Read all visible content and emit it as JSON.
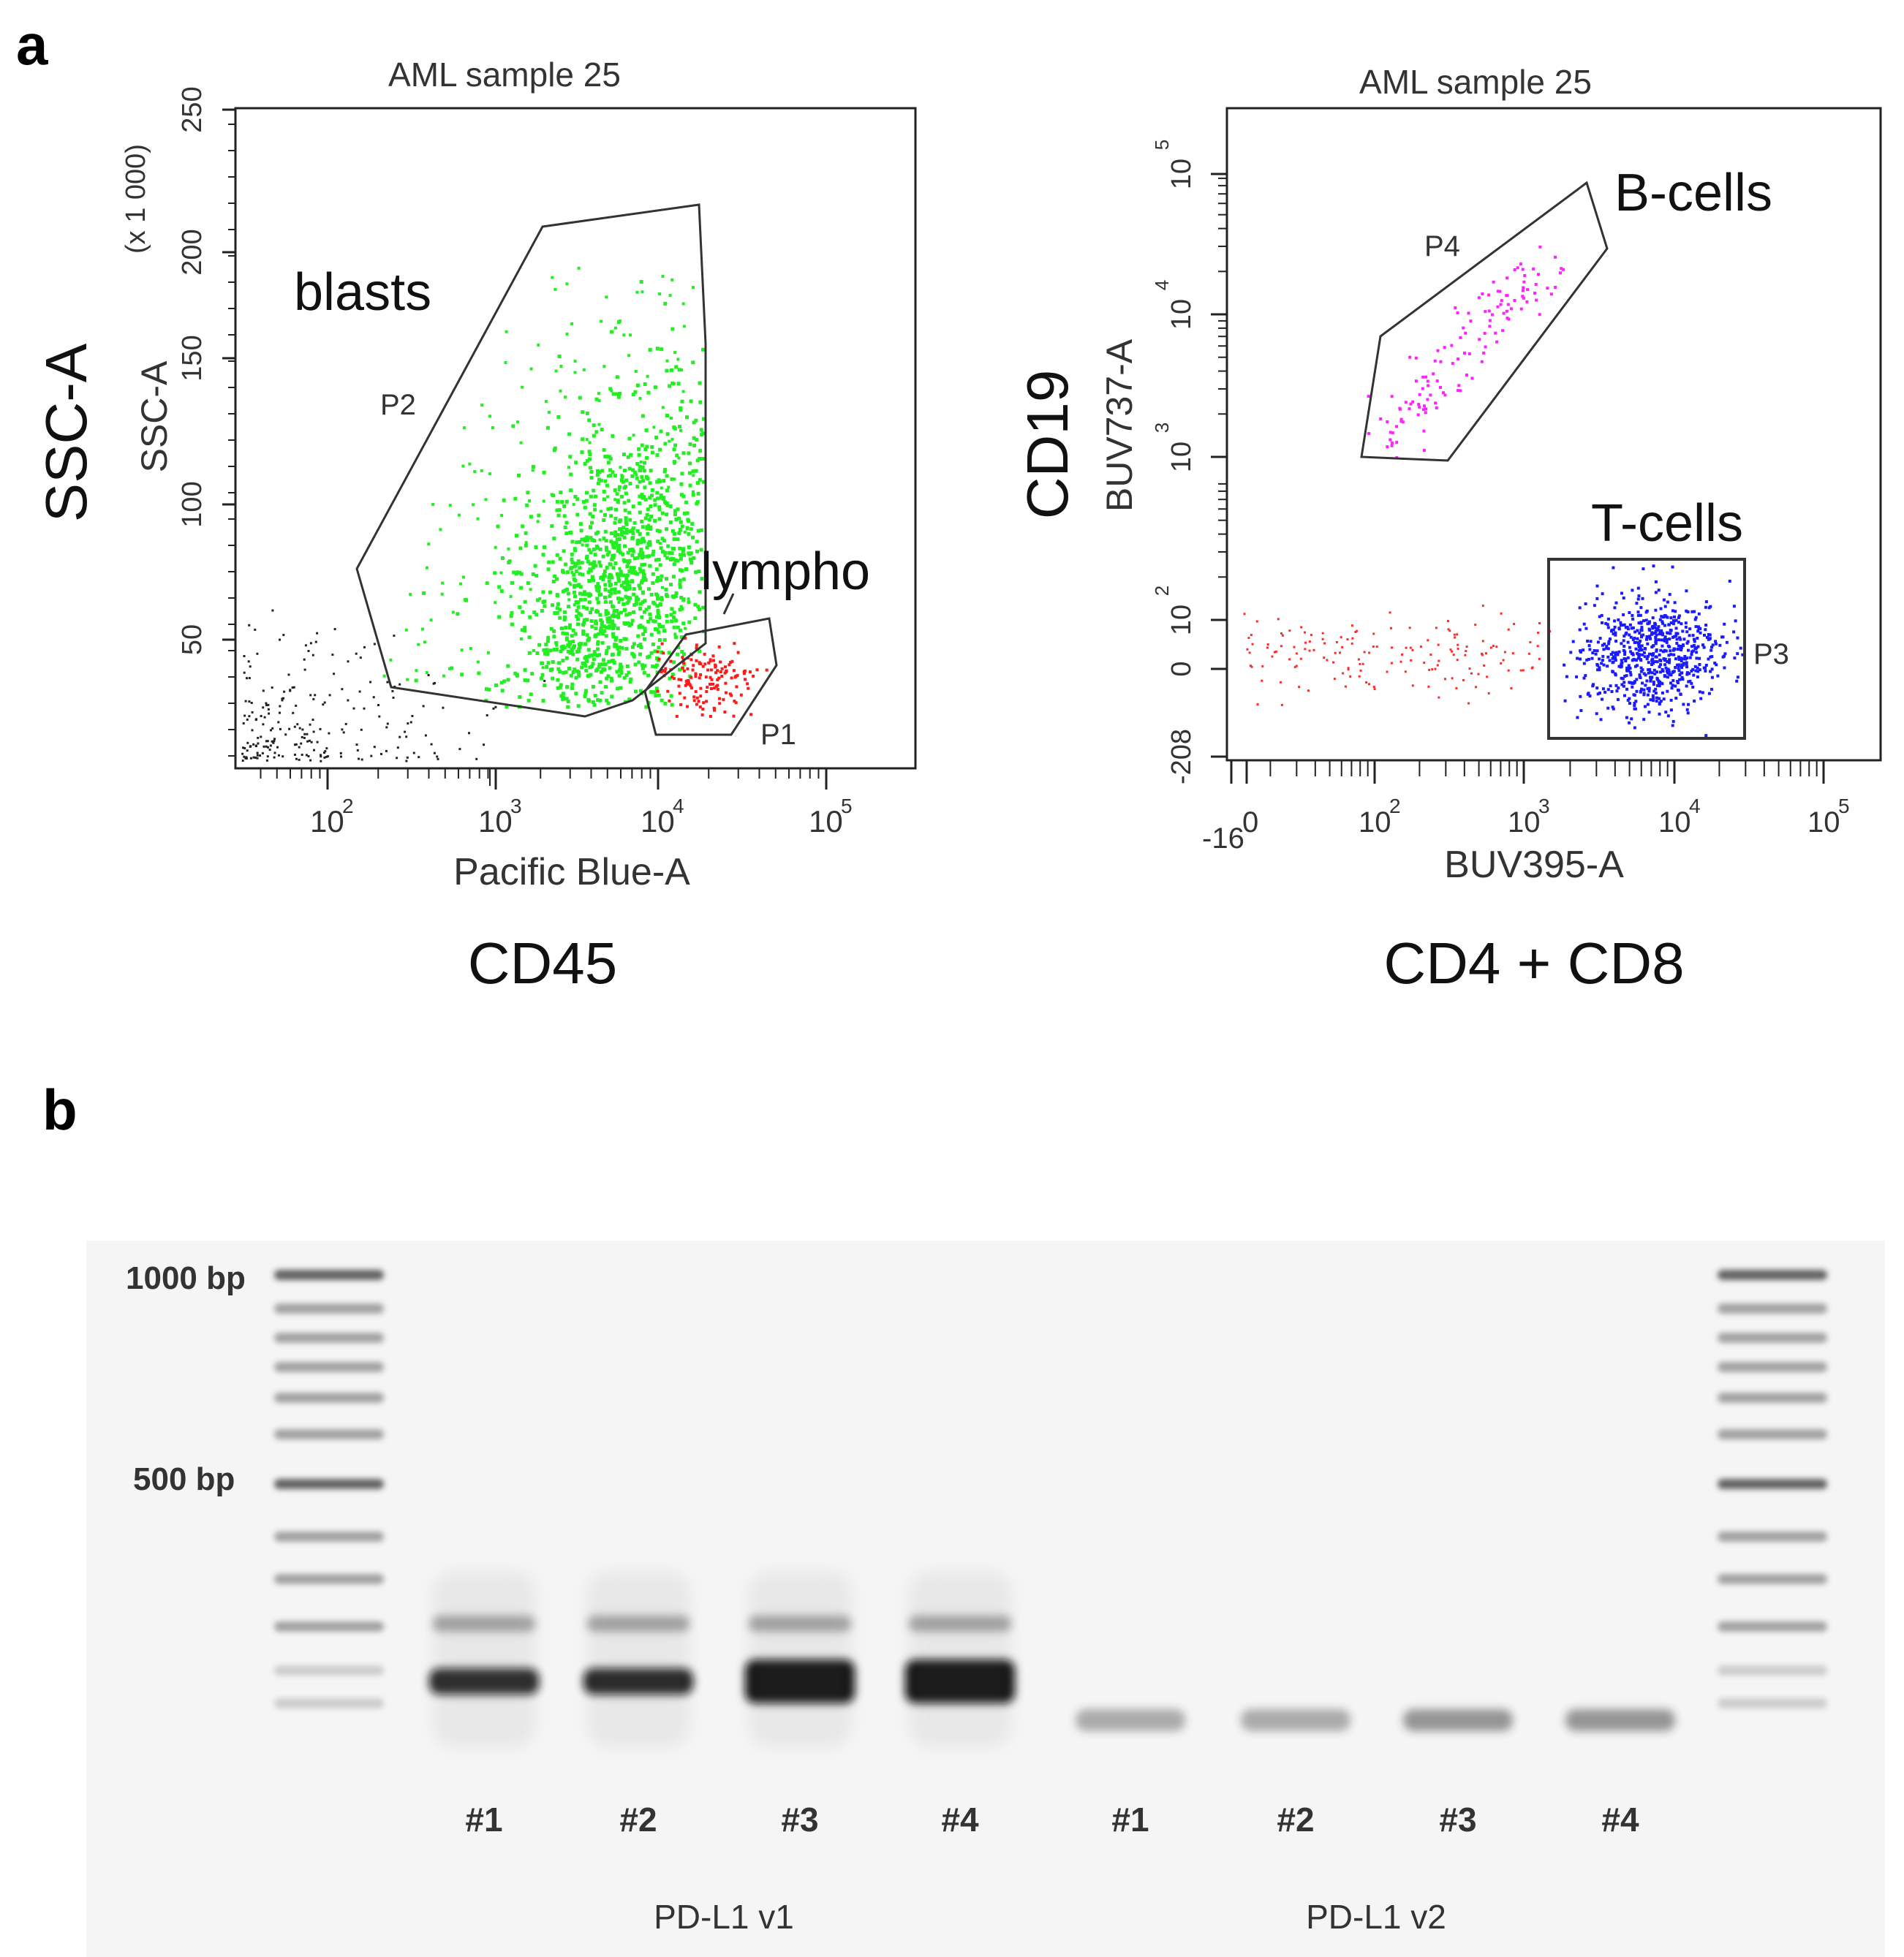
{
  "panel_a": {
    "label": "a",
    "left_plot": {
      "title": "AML sample 25",
      "y_outer_label": "SSC-A",
      "y_inner_label": "SSC-A",
      "y_scale_label": "(x 1 000)",
      "y_ticks": [
        "250",
        "200",
        "150",
        "100",
        "50"
      ],
      "x_ticks": [
        {
          "base": "10",
          "exp": "2"
        },
        {
          "base": "10",
          "exp": "3"
        },
        {
          "base": "10",
          "exp": "4"
        },
        {
          "base": "10",
          "exp": "5"
        }
      ],
      "x_inner_label": "Pacific Blue-A",
      "x_outer_label": "CD45",
      "gates": {
        "p2": "P2",
        "p1": "P1"
      },
      "annotations": {
        "blasts": "blasts",
        "lympho": "lympho"
      },
      "colors": {
        "blasts": "#22ee22",
        "lympho": "#ff1a1a",
        "other": "#222222"
      }
    },
    "right_plot": {
      "title": "AML sample 25",
      "y_outer_label": "CD19",
      "y_inner_label": "BUV737-A",
      "y_ticks": [
        {
          "base": "10",
          "exp": "5"
        },
        {
          "base": "10",
          "exp": "4"
        },
        {
          "base": "10",
          "exp": "3"
        },
        {
          "base": "10",
          "exp": "2"
        },
        {
          "base": "0",
          "exp": ""
        },
        {
          "base": "-208",
          "exp": ""
        }
      ],
      "x_ticks": [
        {
          "base": "-16",
          "exp": ""
        },
        {
          "base": "0",
          "exp": ""
        },
        {
          "base": "10",
          "exp": "2"
        },
        {
          "base": "10",
          "exp": "3"
        },
        {
          "base": "10",
          "exp": "4"
        },
        {
          "base": "10",
          "exp": "5"
        }
      ],
      "x_inner_label": "BUV395-A",
      "x_outer_label": "CD4 + CD8",
      "gates": {
        "p4": "P4",
        "p3": "P3"
      },
      "annotations": {
        "bcells": "B-cells",
        "tcells": "T-cells"
      },
      "colors": {
        "bcells": "#ff22ff",
        "tcells": "#1a1aff",
        "other": "#ff2a2a"
      }
    }
  },
  "panel_b": {
    "label": "b",
    "ladder_labels": [
      "1000 bp",
      "500 bp"
    ],
    "lane_labels_v1": [
      "#1",
      "#2",
      "#3",
      "#4"
    ],
    "lane_labels_v2": [
      "#1",
      "#2",
      "#3",
      "#4"
    ],
    "group_labels": [
      "PD-L1 v1",
      "PD-L1 v2"
    ],
    "band_intensity_v1": [
      0.9,
      0.92,
      1.0,
      1.0
    ],
    "band_intensity_v2": [
      0.35,
      0.35,
      0.45,
      0.45
    ]
  }
}
